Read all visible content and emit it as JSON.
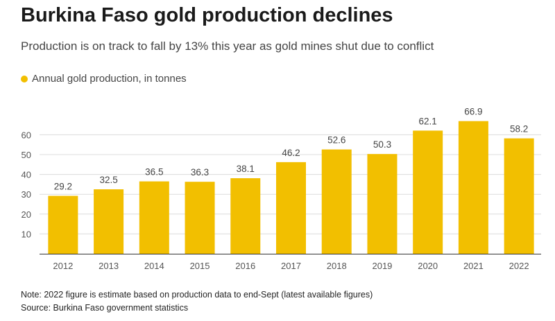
{
  "chart_data": {
    "type": "bar",
    "title": "Burkina Faso gold production declines",
    "subtitle": "Production is on track to fall by 13% this year as gold mines shut due to conflict",
    "categories": [
      "2012",
      "2013",
      "2014",
      "2015",
      "2016",
      "2017",
      "2018",
      "2019",
      "2020",
      "2021",
      "2022"
    ],
    "series": [
      {
        "name": "Annual gold production, in tonnes",
        "values": [
          29.2,
          32.5,
          36.5,
          36.3,
          38.1,
          46.2,
          52.6,
          50.3,
          62.1,
          66.9,
          58.2
        ],
        "color": "#f2bf00"
      }
    ],
    "data_labels": [
      "29.2",
      "32.5",
      "36.5",
      "36.3",
      "38.1",
      "46.2",
      "52.6",
      "50.3",
      "62.1",
      "66.9",
      "58.2"
    ],
    "y_ticks": [
      10,
      20,
      30,
      40,
      50,
      60
    ],
    "ylim": [
      0,
      70
    ],
    "grid": true,
    "legend_position": "top-left",
    "xlabel": "",
    "ylabel": ""
  },
  "footer": {
    "note": "Note: 2022 figure is estimate based on production data to end-Sept (latest available figures)",
    "source": "Source: Burkina Faso government statistics"
  },
  "colors": {
    "bar": "#f2bf00",
    "grid": "#dcdcdc",
    "axis": "#333333"
  }
}
